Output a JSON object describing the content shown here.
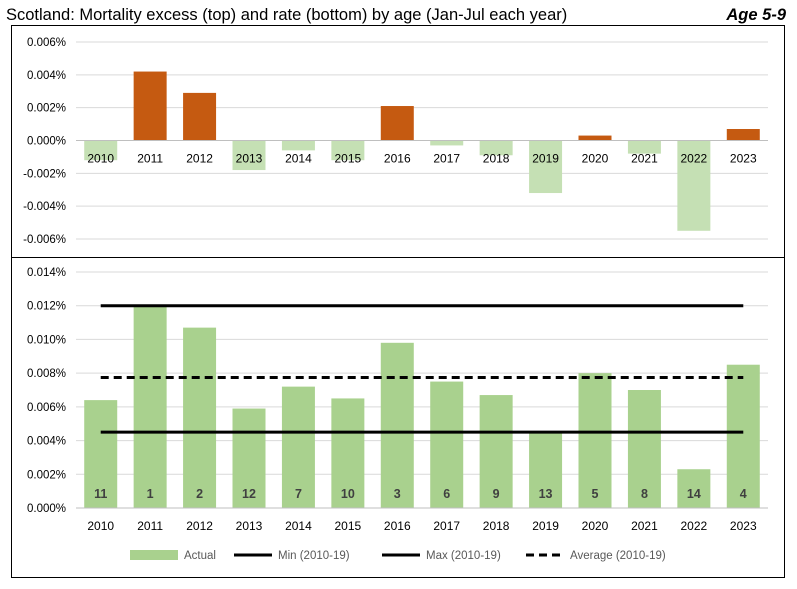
{
  "header": {
    "title": "Scotland: Mortality excess (top) and rate (bottom) by age (Jan-Jul each year)",
    "age_label": "Age 5-9"
  },
  "colors": {
    "positive_excess": "#c55a11",
    "negative_excess": "#c5e0b4",
    "actual": "#a9d18e",
    "lines": "#000000",
    "grid": "#d9d9d9"
  },
  "chart_data": [
    {
      "type": "bar",
      "name": "excess",
      "categories": [
        "2010",
        "2011",
        "2012",
        "2013",
        "2014",
        "2015",
        "2016",
        "2017",
        "2018",
        "2019",
        "2020",
        "2021",
        "2022",
        "2023"
      ],
      "values": [
        -0.0012,
        0.0042,
        0.0029,
        -0.0018,
        -0.0006,
        -0.0012,
        0.0021,
        -0.0003,
        -0.0009,
        -0.0032,
        0.0003,
        -0.0008,
        -0.0055,
        0.0007
      ],
      "yticks": [
        "0.006%",
        "0.004%",
        "0.002%",
        "0.000%",
        "-0.002%",
        "-0.004%",
        "-0.006%"
      ],
      "ylim": [
        -0.006,
        0.006
      ],
      "grid": true
    },
    {
      "type": "bar",
      "name": "rate",
      "categories": [
        "2010",
        "2011",
        "2012",
        "2013",
        "2014",
        "2015",
        "2016",
        "2017",
        "2018",
        "2019",
        "2020",
        "2021",
        "2022",
        "2023"
      ],
      "series": [
        {
          "name": "Actual",
          "kind": "bar",
          "values": [
            0.0064,
            0.012,
            0.0107,
            0.0059,
            0.0072,
            0.0065,
            0.0098,
            0.0075,
            0.0067,
            0.0045,
            0.008,
            0.007,
            0.0023,
            0.0085
          ]
        },
        {
          "name": "Min (2010-19)",
          "kind": "line",
          "style": "solid",
          "value": 0.0045
        },
        {
          "name": "Max (2010-19)",
          "kind": "line",
          "style": "solid",
          "value": 0.012
        },
        {
          "name": "Average (2010-19)",
          "kind": "line",
          "style": "dashed",
          "value": 0.00774
        }
      ],
      "rank_labels": [
        "11",
        "1",
        "2",
        "12",
        "7",
        "10",
        "3",
        "6",
        "9",
        "13",
        "5",
        "8",
        "14",
        "4"
      ],
      "yticks": [
        "0.014%",
        "0.012%",
        "0.010%",
        "0.008%",
        "0.006%",
        "0.004%",
        "0.002%",
        "0.000%"
      ],
      "ylim": [
        0,
        0.014
      ],
      "grid": true,
      "legend_position": "bottom"
    }
  ]
}
